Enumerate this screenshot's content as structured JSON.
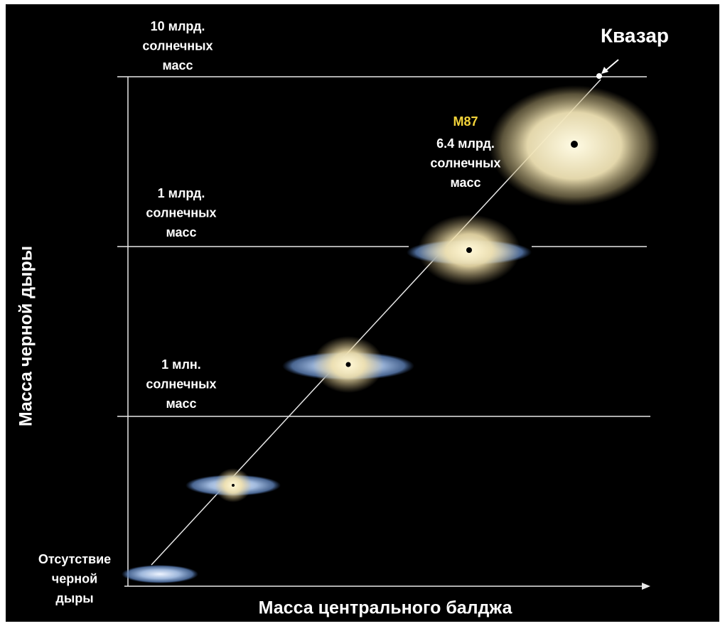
{
  "axes": {
    "y_label": "Масса черной дыры",
    "x_label": "Масса центрального балджа"
  },
  "levels": [
    {
      "lines": [
        "10 млрд.",
        "солнечных",
        "масс"
      ]
    },
    {
      "lines": [
        "1 млрд.",
        "солнечных",
        "масс"
      ]
    },
    {
      "lines": [
        "1 млн.",
        "солнечных",
        "масс"
      ]
    }
  ],
  "annotations": {
    "quasar": "Квазар",
    "m87": {
      "name": "M87",
      "lines": [
        "6.4 млрд.",
        "солнечных",
        "масс"
      ]
    },
    "no_black_hole": {
      "lines": [
        "Отсутствие",
        "черной",
        "дыры"
      ]
    }
  }
}
